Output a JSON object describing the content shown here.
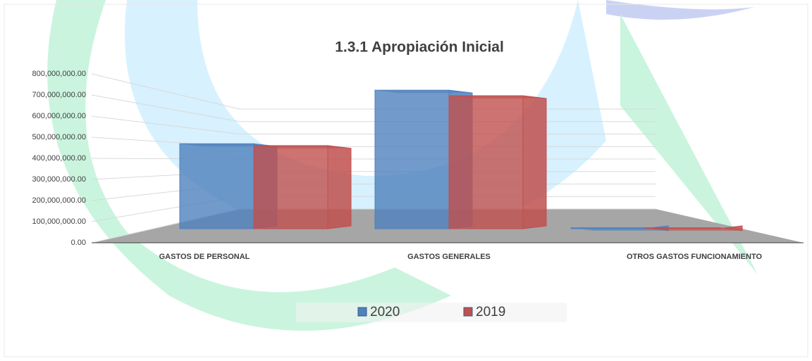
{
  "chart_data": {
    "type": "bar3d",
    "title": "1.3.1 Apropiación Inicial",
    "categories": [
      "GASTOS DE PERSONAL",
      "GASTOS GENERALES",
      "OTROS GASTOS FUNCIONAMIENTO"
    ],
    "series": [
      {
        "name": "2020",
        "color": "#4f81bd",
        "values": [
          460000000,
          750000000,
          5000000
        ]
      },
      {
        "name": "2019",
        "color": "#c0504d",
        "values": [
          450000000,
          720000000,
          5000000
        ]
      }
    ],
    "ylim": [
      0,
      800000000
    ],
    "yticks": [
      {
        "value": 0,
        "label": "0.00"
      },
      {
        "value": 100000000,
        "label": "100,000,000.00"
      },
      {
        "value": 200000000,
        "label": "200,000,000.00"
      },
      {
        "value": 300000000,
        "label": "300,000,000.00"
      },
      {
        "value": 400000000,
        "label": "400,000,000.00"
      },
      {
        "value": 500000000,
        "label": "500,000,000.00"
      },
      {
        "value": 600000000,
        "label": "600,000,000.00"
      },
      {
        "value": 700000000,
        "label": "700,000,000.00"
      },
      {
        "value": 800000000,
        "label": "800,000,000.00"
      }
    ],
    "grid": true,
    "legend": "bottom"
  }
}
